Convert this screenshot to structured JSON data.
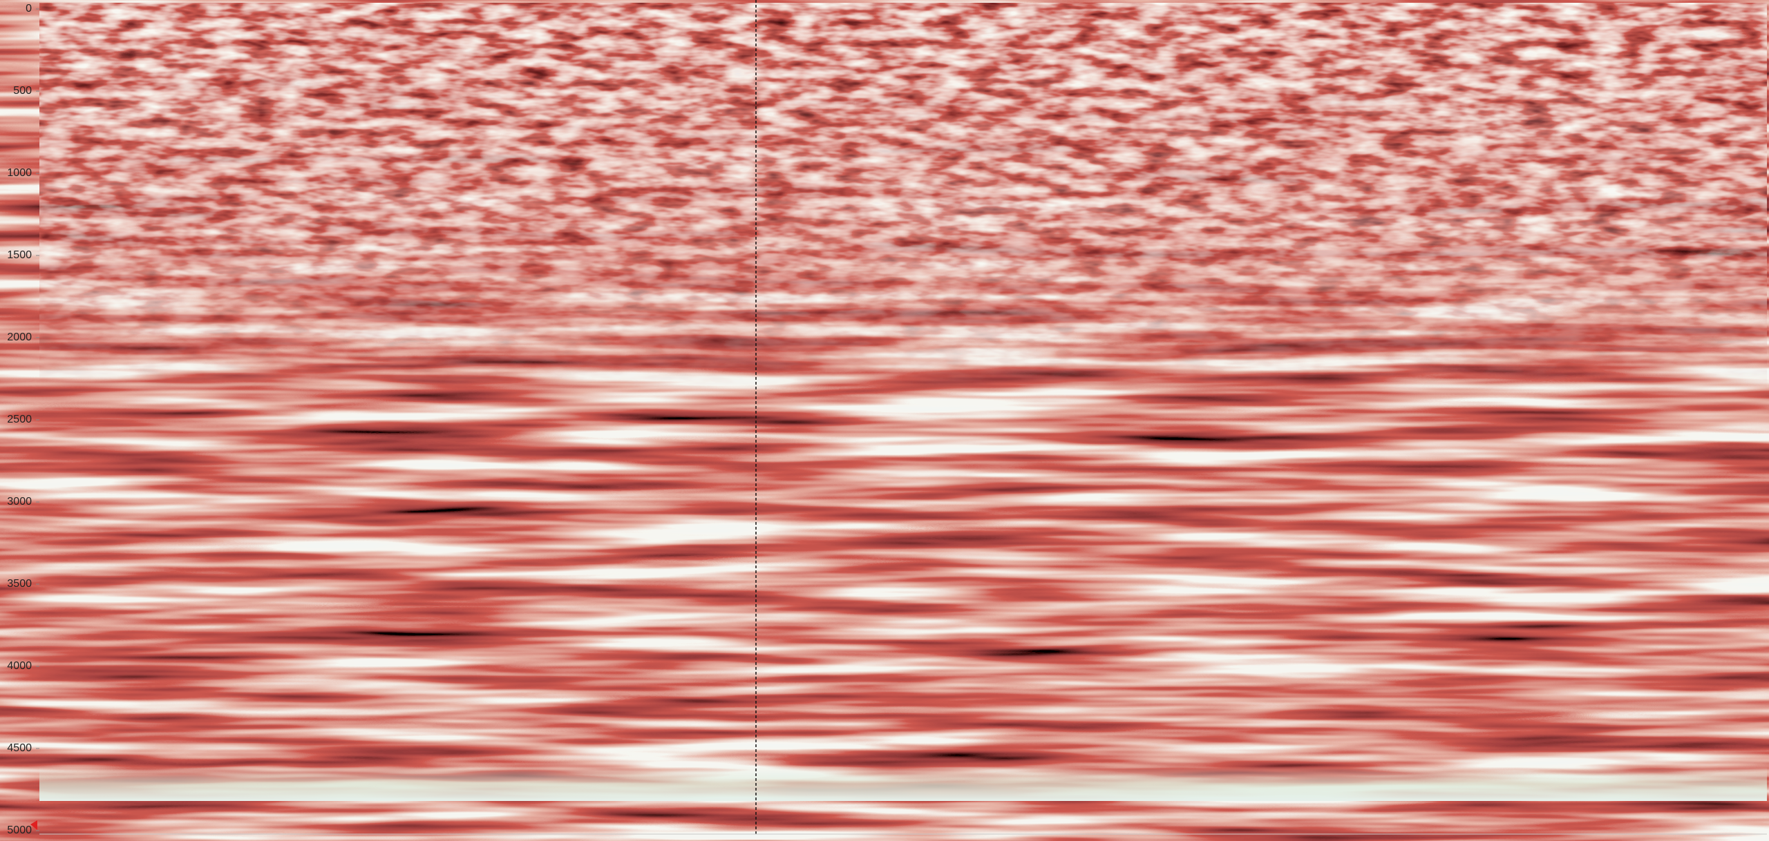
{
  "axis": {
    "range": [
      0,
      5000
    ],
    "ticks": [
      0,
      500,
      1000,
      1500,
      2000,
      2500,
      3000,
      3500,
      4000,
      4500,
      5000
    ]
  }
}
